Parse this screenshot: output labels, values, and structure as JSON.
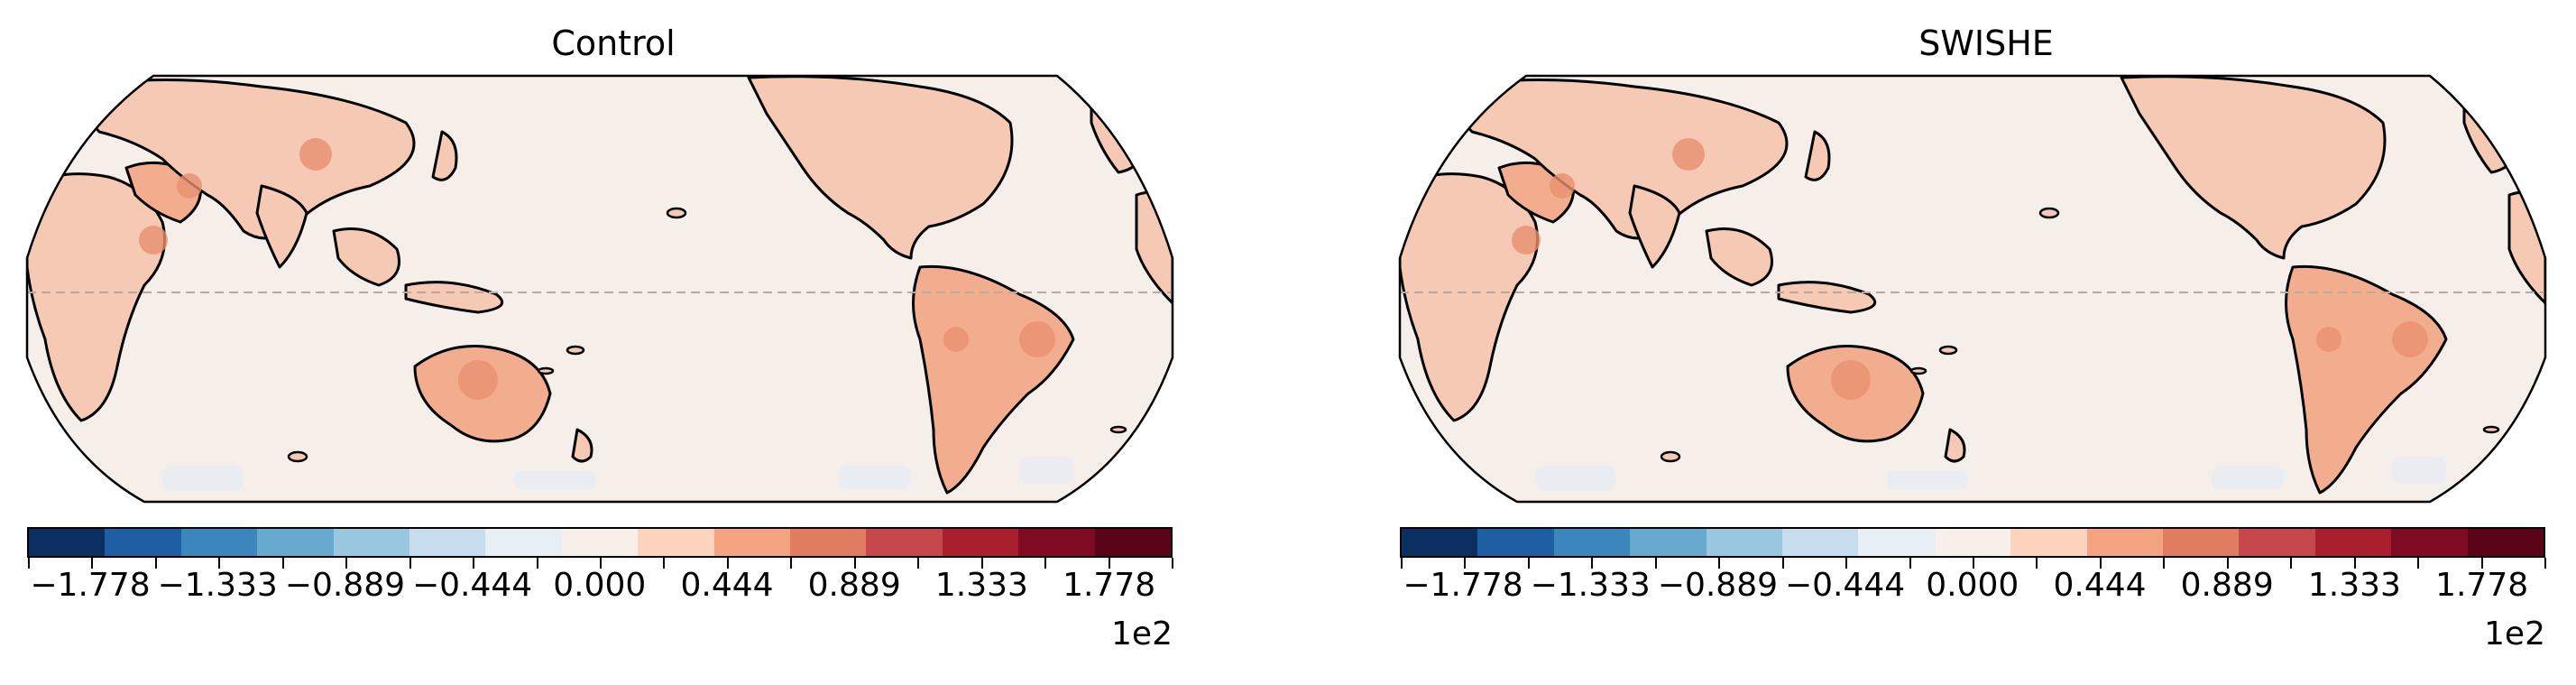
{
  "panels": [
    {
      "title": "Control"
    },
    {
      "title": "SWISHE"
    }
  ],
  "colorbar": {
    "colors": [
      "#0a3062",
      "#1d5fa2",
      "#3a86bd",
      "#68a9cf",
      "#98c7df",
      "#c7dcec",
      "#e7eff6",
      "#f8efea",
      "#fcd3bd",
      "#f3a37f",
      "#e07d61",
      "#c7484c",
      "#aa1f2d",
      "#7e0b22",
      "#5b0419"
    ],
    "tick_labels": [
      "−1.778",
      "−1.333",
      "−0.889",
      "−0.444",
      "0.000",
      "0.444",
      "0.889",
      "1.333",
      "1.778"
    ],
    "exponent": "1e2",
    "minor_ticks": 19
  },
  "map": {
    "ocean_color": "#f6eee9",
    "land_light": "#f6c9b4",
    "land_medium": "#f2ad8f",
    "land_dark": "#e8906f",
    "antarctic_tint": "#e9edf2",
    "equator_color": "#bca8a0"
  }
}
